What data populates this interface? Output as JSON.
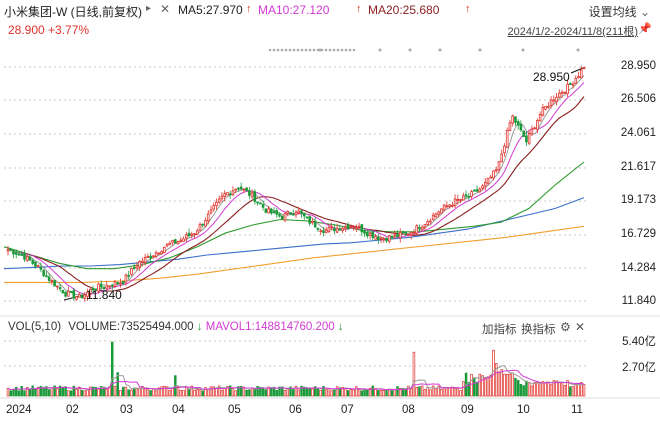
{
  "header": {
    "title": "小米集团-W (日线,前复权)",
    "ma5": "MA5:27.970",
    "ma10": "MA10:27.120",
    "ma20": "MA20:25.680",
    "settings_label": "设置均线",
    "price_change": "28.900 +3.77%",
    "date_range": "2024/1/2-2024/11/8(211根)"
  },
  "colors": {
    "up": "#e0312a",
    "down": "#1a9a3a",
    "ma5": "#222222",
    "ma10": "#d23ad2",
    "ma20": "#8a1f1f",
    "ma60": "#2f9a2f",
    "ma120": "#3a6fc9",
    "ma250": "#f0a030",
    "grid": "#c8c8c8"
  },
  "icons": [
    "triangle-right-icon",
    "x-icon",
    "pin-icon",
    "gear-icon",
    "chevron-down-icon"
  ],
  "chart_data": {
    "type": "candlestick",
    "y_labels": [
      "28.950",
      "26.506",
      "24.061",
      "21.617",
      "19.173",
      "16.729",
      "14.284",
      "11.840"
    ],
    "ylim": [
      11.84,
      28.95
    ],
    "annotations": {
      "high": "28.950",
      "low": "11.840"
    },
    "x_labels": [
      "2024",
      "02",
      "03",
      "04",
      "05",
      "06",
      "07",
      "08",
      "09",
      "10",
      "11"
    ],
    "weekly_close": [
      15.6,
      15.2,
      14.4,
      13.3,
      12.4,
      12.1,
      12.8,
      13.0,
      13.3,
      14.6,
      15.2,
      15.9,
      16.3,
      16.9,
      18.2,
      19.6,
      20.2,
      19.5,
      18.4,
      18.0,
      18.5,
      17.6,
      17.0,
      17.2,
      17.4,
      16.8,
      16.4,
      16.6,
      16.9,
      17.6,
      18.5,
      19.1,
      19.5,
      20.2,
      21.5,
      25.4,
      23.5,
      25.6,
      26.8,
      27.6,
      28.9
    ],
    "series": [
      {
        "name": "MA60",
        "values": [
          15.8,
          15.2,
          14.6,
          14.2,
          14.2,
          14.5,
          15.0,
          15.8,
          16.8,
          17.4,
          17.8,
          17.7,
          17.4,
          17.0,
          16.9,
          16.9,
          17.1,
          17.3,
          17.6,
          18.6,
          20.4,
          22.0
        ]
      },
      {
        "name": "MA120",
        "values": [
          14.2,
          14.3,
          14.4,
          14.4,
          14.5,
          14.7,
          14.9,
          15.2,
          15.4,
          15.6,
          15.8,
          16.0,
          16.1,
          16.3,
          16.5,
          16.8,
          17.1,
          17.6,
          18.1,
          18.6,
          19.4
        ]
      },
      {
        "name": "MA250",
        "values": [
          13.2,
          13.2,
          13.2,
          13.3,
          13.5,
          13.8,
          14.2,
          14.6,
          15.0,
          15.3,
          15.6,
          15.9,
          16.2,
          16.5,
          16.9,
          17.3
        ]
      }
    ],
    "volume": {
      "labels": [
        "5.40亿",
        "2.70亿"
      ],
      "ylim": [
        0,
        5.4
      ],
      "current": "VOLUME:73525494.000",
      "mavol1": "MAVOL1:148814760.200",
      "spikes": [
        {
          "x_label": "03-04",
          "value": 5.3
        },
        {
          "x_label": "08-19",
          "value": 4.3
        },
        {
          "x_label": "10-03",
          "value": 4.5
        }
      ]
    }
  },
  "volume_panel": {
    "title": "VOL(5,10)",
    "current": "VOLUME:73525494.000",
    "mavol1": "MAVOL1:148814760.200",
    "add_indicator": "加指标",
    "switch_indicator": "换指标"
  }
}
